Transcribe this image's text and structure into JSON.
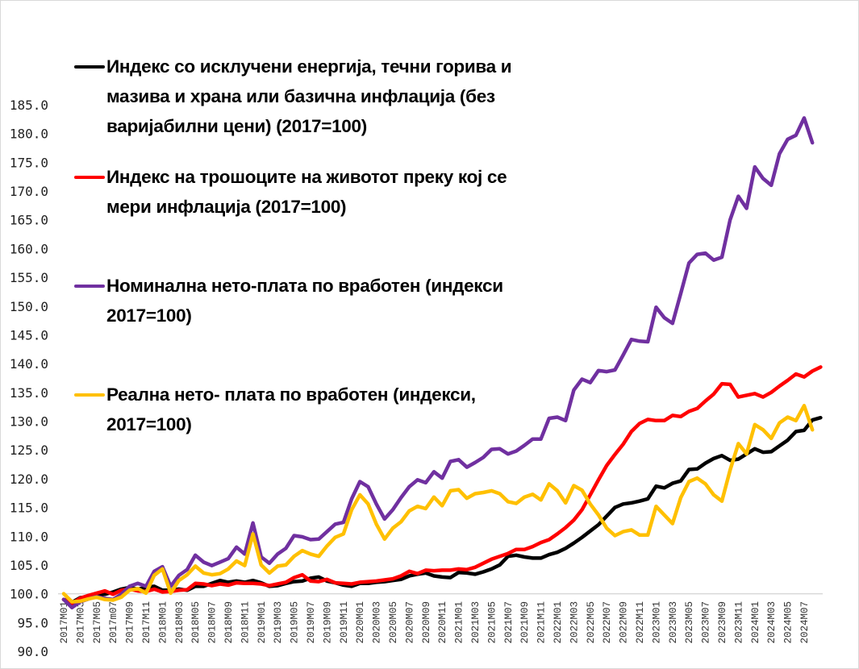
{
  "chart_data": {
    "type": "line",
    "title": "",
    "xlabel": "",
    "ylabel": "",
    "x_start": "2017M01",
    "frequency": "monthly",
    "x_tick_labels": [
      "2017M01",
      "2017M03",
      "2017M05",
      "2017m07",
      "2017M09",
      "2017M11",
      "2018M01",
      "2018M03",
      "2018M05",
      "2018M07",
      "2018M09",
      "2018M11",
      "2019M01",
      "2019M03",
      "2019M05",
      "2019M07",
      "2019M09",
      "2019M11",
      "2020M01",
      "2020M03",
      "2020M05",
      "2020M07",
      "2020M09",
      "2020M11",
      "2021M01",
      "2021M03",
      "2021M05",
      "2021M07",
      "2021M09",
      "2021M11",
      "2022M01",
      "2022M03",
      "2022M05",
      "2022M07",
      "2022M09",
      "2022M11",
      "2023M01",
      "2023M03",
      "2023M05",
      "2023M07",
      "2023M09",
      "2023M11",
      "2024M01",
      "2024M03",
      "2024M05",
      "2024M07"
    ],
    "y_tick_labels": [
      "90.0",
      "95.0",
      "100.0",
      "105.0",
      "110.0",
      "115.0",
      "120.0",
      "125.0",
      "130.0",
      "135.0",
      "140.0",
      "145.0",
      "150.0",
      "155.0",
      "160.0",
      "165.0",
      "170.0",
      "175.0",
      "180.0",
      "185.0"
    ],
    "ylim": [
      90,
      185
    ],
    "grid": false,
    "legend_placement": "top-left",
    "series": [
      {
        "name": "Индекс со исклучени енергија, течни горива и мазива и храна или базична инфлација (без варијабилни цени) (2017=100)",
        "legend_lines": [
          "Индекс со исклучени енергија, течни горива и",
          "мазива и храна или базична инфлација (без",
          "варијабилни цени) (2017=100)"
        ],
        "color": "#000000",
        "values": [
          99.0,
          98.5,
          99.3,
          99.5,
          99.9,
          99.9,
          100.3,
          100.8,
          101.1,
          100.8,
          101.1,
          101.3,
          100.6,
          100.6,
          100.8,
          100.6,
          101.3,
          101.3,
          101.8,
          102.3,
          102.0,
          102.2,
          102.0,
          102.3,
          101.9,
          101.3,
          101.4,
          101.8,
          102.1,
          102.2,
          102.7,
          102.9,
          102.2,
          101.9,
          101.5,
          101.3,
          101.8,
          101.8,
          102.0,
          102.1,
          102.3,
          102.5,
          103.1,
          103.4,
          103.6,
          103.1,
          102.9,
          102.8,
          103.7,
          103.6,
          103.4,
          103.8,
          104.3,
          105.0,
          106.5,
          106.7,
          106.4,
          106.2,
          106.2,
          106.8,
          107.2,
          107.9,
          108.8,
          109.8,
          110.9,
          112.0,
          113.5,
          115.0,
          115.6,
          115.8,
          116.1,
          116.5,
          118.7,
          118.4,
          119.2,
          119.6,
          121.6,
          121.7,
          122.7,
          123.5,
          124.0,
          123.2,
          123.4,
          124.3,
          125.2,
          124.6,
          124.7,
          125.7,
          126.7,
          128.2,
          128.4,
          130.2,
          130.6
        ]
      },
      {
        "name": "Индекс на трошоците на животот преку кој се мери инфлација (2017=100)",
        "legend_lines": [
          "Индекс на трошоците на животот преку кој се",
          "мери инфлација (2017=100)"
        ],
        "color": "#ff0000",
        "values": [
          99.0,
          98.3,
          99.2,
          99.7,
          100.1,
          100.5,
          99.9,
          100.6,
          100.8,
          100.5,
          100.4,
          100.8,
          100.3,
          100.4,
          100.6,
          100.7,
          101.8,
          101.7,
          101.4,
          101.7,
          101.5,
          101.9,
          101.8,
          101.8,
          101.7,
          101.4,
          101.7,
          102.0,
          102.8,
          103.3,
          102.2,
          102.1,
          102.5,
          101.9,
          101.8,
          101.7,
          102.0,
          102.1,
          102.2,
          102.4,
          102.6,
          103.1,
          103.9,
          103.5,
          104.1,
          104.0,
          104.1,
          104.1,
          104.3,
          104.2,
          104.6,
          105.3,
          106.0,
          106.5,
          107.0,
          107.7,
          107.7,
          108.2,
          108.9,
          109.4,
          110.4,
          111.5,
          112.8,
          114.6,
          117.2,
          119.8,
          122.3,
          124.2,
          126.0,
          128.2,
          129.6,
          130.3,
          130.1,
          130.1,
          131.0,
          130.8,
          131.7,
          132.2,
          133.5,
          134.7,
          136.5,
          136.4,
          134.2,
          134.5,
          134.8,
          134.2,
          135.0,
          136.1,
          137.1,
          138.2,
          137.7,
          138.7,
          139.4
        ]
      },
      {
        "name": "Номинална нето-плата по вработен (индекси 2017=100)",
        "legend_lines": [
          "Номинална нето-плата по вработен (индекси",
          "2017=100)"
        ],
        "color": "#7030a0",
        "values": [
          99.0,
          97.6,
          98.6,
          99.1,
          99.5,
          99.2,
          99.0,
          99.9,
          101.3,
          101.8,
          101.3,
          103.9,
          104.7,
          101.3,
          103.2,
          104.2,
          106.7,
          105.5,
          104.9,
          105.5,
          106.1,
          108.1,
          106.9,
          112.3,
          106.4,
          105.3,
          106.9,
          107.9,
          110.1,
          109.9,
          109.4,
          109.5,
          110.8,
          112.1,
          112.4,
          116.5,
          119.5,
          118.6,
          115.6,
          113.0,
          114.6,
          116.7,
          118.6,
          119.8,
          119.3,
          121.2,
          120.1,
          123.0,
          123.3,
          122.0,
          122.8,
          123.7,
          125.1,
          125.2,
          124.3,
          124.8,
          125.8,
          126.9,
          126.9,
          130.5,
          130.7,
          130.1,
          135.4,
          137.3,
          136.7,
          138.8,
          138.6,
          138.9,
          141.5,
          144.2,
          143.9,
          143.8,
          149.8,
          148.0,
          147.0,
          152.2,
          157.5,
          159.0,
          159.2,
          158.0,
          158.5,
          165.0,
          169.1,
          167.0,
          174.2,
          172.2,
          171.0,
          176.5,
          179.0,
          179.7,
          182.7,
          178.4
        ]
      },
      {
        "name": "Реална нето- плата по вработен  (индекси, 2017=100)",
        "legend_lines": [
          "Реална нето- плата по вработен  (индекси,",
          "2017=100)"
        ],
        "color": "#ffc000",
        "values": [
          100.0,
          98.6,
          98.7,
          99.1,
          99.4,
          99.0,
          98.9,
          99.4,
          100.6,
          100.9,
          100.1,
          103.2,
          104.3,
          100.1,
          102.3,
          103.3,
          104.8,
          103.6,
          103.3,
          103.5,
          104.3,
          105.7,
          104.9,
          110.4,
          105.0,
          103.6,
          104.8,
          105.0,
          106.5,
          107.5,
          106.9,
          106.5,
          108.3,
          109.8,
          110.4,
          114.6,
          117.2,
          115.6,
          112.1,
          109.5,
          111.4,
          112.5,
          114.4,
          115.2,
          114.8,
          116.8,
          115.3,
          117.9,
          118.1,
          116.6,
          117.4,
          117.6,
          117.9,
          117.4,
          116.0,
          115.7,
          116.8,
          117.3,
          116.3,
          119.1,
          117.9,
          115.8,
          118.8,
          118.0,
          115.6,
          113.7,
          111.4,
          110.1,
          110.8,
          111.1,
          110.2,
          110.2,
          115.2,
          113.7,
          112.2,
          116.7,
          119.5,
          120.1,
          119.1,
          117.2,
          116.1,
          121.5,
          126.1,
          124.3,
          129.4,
          128.5,
          127.0,
          129.7,
          130.7,
          130.1,
          132.7,
          128.5
        ]
      }
    ]
  }
}
